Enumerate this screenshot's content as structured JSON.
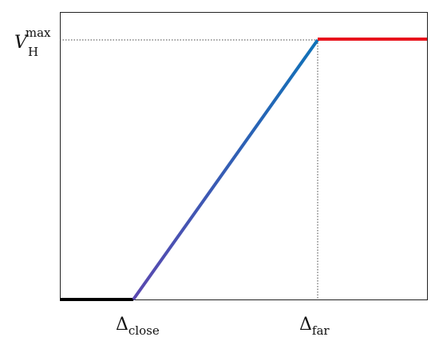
{
  "axes": {
    "y_label": {
      "main": "V",
      "sub": "H",
      "sup": "max"
    },
    "x_labels": [
      {
        "main": "Δ",
        "sub": "close"
      },
      {
        "main": "Δ",
        "sub": "far"
      }
    ]
  }
}
